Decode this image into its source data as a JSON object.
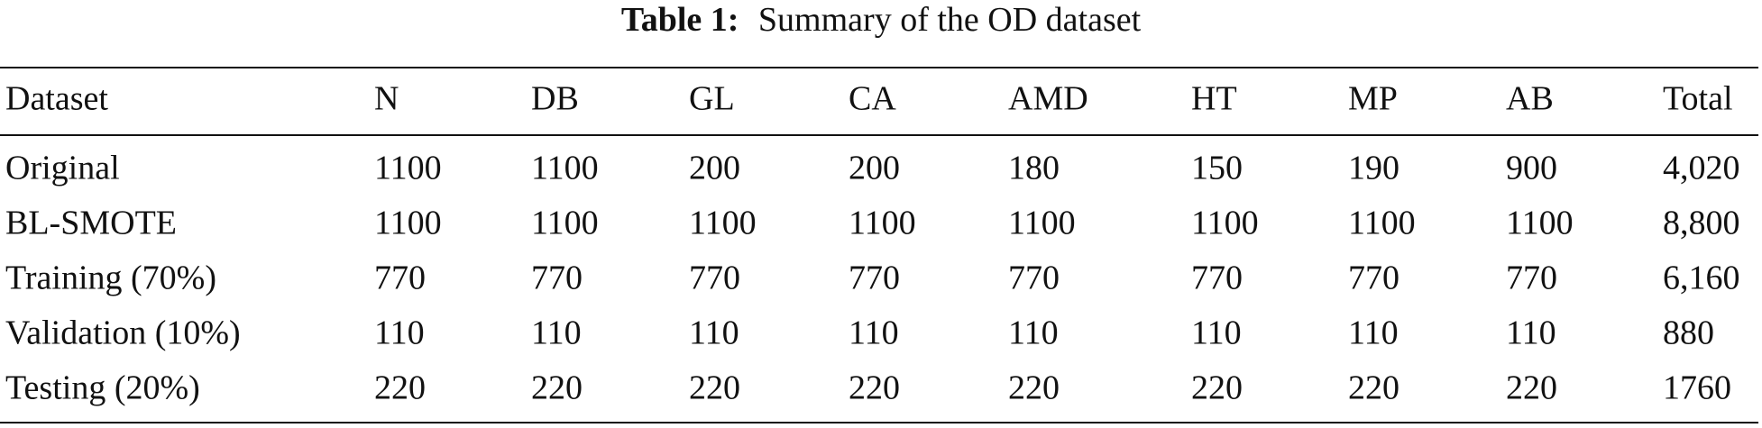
{
  "caption": {
    "label": "Table 1:",
    "text": "Summary of the OD dataset"
  },
  "table": {
    "header": [
      "Dataset",
      "N",
      "DB",
      "GL",
      "CA",
      "AMD",
      "HT",
      "MP",
      "AB",
      "Total"
    ],
    "rows": [
      [
        "Original",
        "1100",
        "1100",
        "200",
        "200",
        "180",
        "150",
        "190",
        "900",
        "4,020"
      ],
      [
        "BL-SMOTE",
        "1100",
        "1100",
        "1100",
        "1100",
        "1100",
        "1100",
        "1100",
        "1100",
        "8,800"
      ],
      [
        "Training (70%)",
        "770",
        "770",
        "770",
        "770",
        "770",
        "770",
        "770",
        "770",
        "6,160"
      ],
      [
        "Validation (10%)",
        "110",
        "110",
        "110",
        "110",
        "110",
        "110",
        "110",
        "110",
        "880"
      ],
      [
        "Testing (20%)",
        "220",
        "220",
        "220",
        "220",
        "220",
        "220",
        "220",
        "220",
        "1760"
      ]
    ]
  }
}
